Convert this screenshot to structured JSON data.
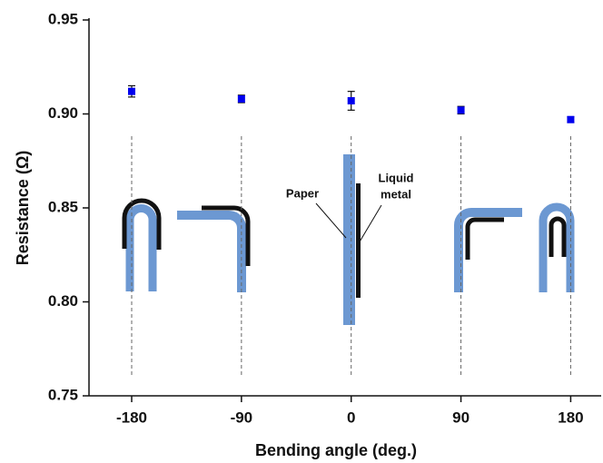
{
  "chart_data": {
    "type": "scatter",
    "x_label": "Bending angle (deg.)",
    "y_label": "Resistance (Ω)",
    "x": [
      -180,
      -90,
      0,
      90,
      180
    ],
    "series": [
      {
        "color": "#0000ee",
        "values": [
          0.912,
          0.908,
          0.907,
          0.902,
          0.897
        ],
        "errors": [
          0.003,
          0.002,
          0.005,
          0.002,
          0.0015
        ]
      }
    ],
    "xlim": [
      -215,
      205
    ],
    "ylim": [
      0.75,
      0.95
    ],
    "xticks": [
      -180,
      -90,
      0,
      90,
      180
    ],
    "yticks": [
      0.75,
      {
        "value": 0.8,
        "label": "0.80"
      },
      0.85,
      {
        "value": 0.9,
        "label": "0.90"
      },
      0.95
    ],
    "annotations": [
      "Paper",
      "Liquid",
      "metal"
    ]
  }
}
